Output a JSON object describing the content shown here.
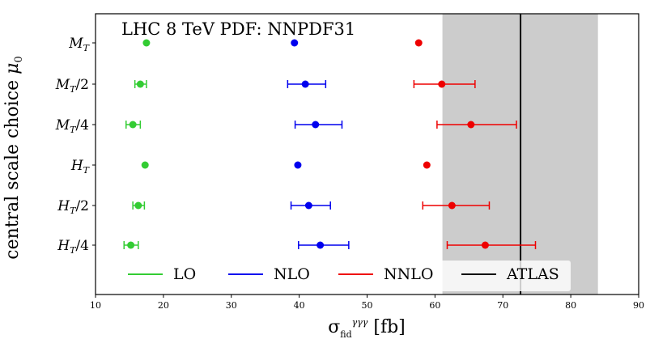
{
  "chart_data": {
    "type": "scatter",
    "title": "LHC 8 TeV PDF: NNPDF31",
    "xlabel": "σ_fid^γγγ [fb]",
    "ylabel": "central scale choice μ_0",
    "xlim": [
      10,
      90
    ],
    "xticks": [
      10,
      20,
      30,
      40,
      50,
      60,
      70,
      80,
      90
    ],
    "categories": [
      "M_T",
      "M_T/2",
      "M_T/4",
      "H_T",
      "H_T/2",
      "H_T/4"
    ],
    "series": [
      {
        "name": "LO",
        "color": "#33cc33",
        "points": [
          {
            "value": 17.5,
            "err_low": null,
            "err_high": null
          },
          {
            "value": 16.6,
            "err_low": 15.8,
            "err_high": 17.5
          },
          {
            "value": 15.5,
            "err_low": 14.5,
            "err_high": 16.6
          },
          {
            "value": 17.3,
            "err_low": null,
            "err_high": null
          },
          {
            "value": 16.3,
            "err_low": 15.5,
            "err_high": 17.2
          },
          {
            "value": 15.2,
            "err_low": 14.2,
            "err_high": 16.3
          }
        ]
      },
      {
        "name": "NLO",
        "color": "#0000ee",
        "points": [
          {
            "value": 39.3,
            "err_low": null,
            "err_high": null
          },
          {
            "value": 40.9,
            "err_low": 38.3,
            "err_high": 43.9
          },
          {
            "value": 42.4,
            "err_low": 39.4,
            "err_high": 46.3
          },
          {
            "value": 39.8,
            "err_low": null,
            "err_high": null
          },
          {
            "value": 41.4,
            "err_low": 38.8,
            "err_high": 44.6
          },
          {
            "value": 43.1,
            "err_low": 39.9,
            "err_high": 47.3
          }
        ]
      },
      {
        "name": "NNLO",
        "color": "#ee0000",
        "points": [
          {
            "value": 57.6,
            "err_low": null,
            "err_high": null
          },
          {
            "value": 61.0,
            "err_low": 56.9,
            "err_high": 65.9
          },
          {
            "value": 65.3,
            "err_low": 60.3,
            "err_high": 72.0
          },
          {
            "value": 58.8,
            "err_low": null,
            "err_high": null
          },
          {
            "value": 62.5,
            "err_low": 58.2,
            "err_high": 68.0
          },
          {
            "value": 67.4,
            "err_low": 61.8,
            "err_high": 74.8
          }
        ]
      }
    ],
    "band": {
      "name": "ATLAS",
      "value": 72.6,
      "low": 61.1,
      "high": 84.0,
      "color": "#000000",
      "fill": "#cccccc"
    },
    "legend": [
      "LO",
      "NLO",
      "NNLO",
      "ATLAS"
    ],
    "legend_placement": "bottom",
    "grid": false
  }
}
